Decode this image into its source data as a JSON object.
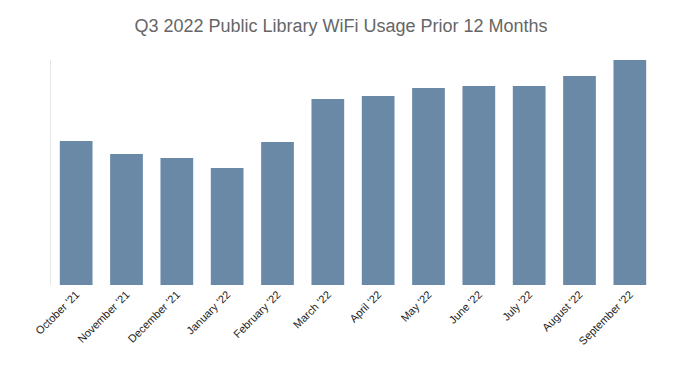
{
  "chart_data": {
    "type": "bar",
    "title": "Q3 2022 Public Library WiFi Usage Prior 12 Months",
    "categories": [
      "October '21",
      "November '21",
      "December '21",
      "January '22",
      "February '22",
      "March '22",
      "April '22",
      "May '22",
      "June '22",
      "July '22",
      "August '22",
      "September '22"
    ],
    "values": [
      144,
      131,
      127,
      117,
      143,
      186,
      189,
      197,
      199,
      199,
      209,
      225
    ],
    "color": "#6a89a7",
    "ylim": [
      0,
      225
    ],
    "grid": false,
    "tick_labels": "x"
  }
}
